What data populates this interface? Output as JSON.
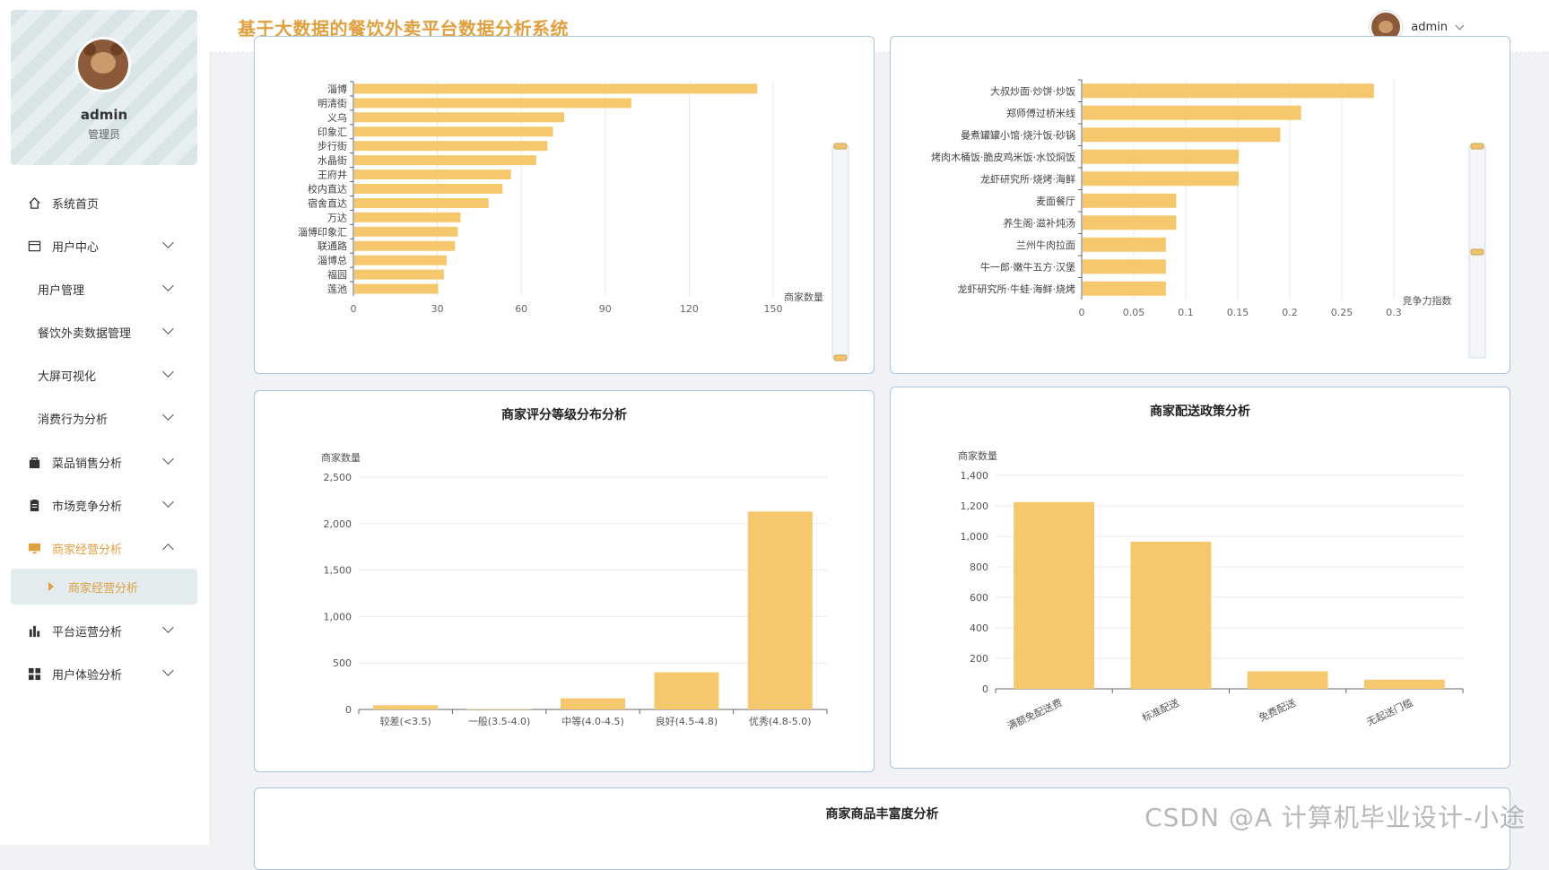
{
  "app": {
    "title": "基于大数据的餐饮外卖平台数据分析系统"
  },
  "profile": {
    "name": "admin",
    "role": "管理员"
  },
  "header_user": {
    "name": "admin"
  },
  "menu": [
    {
      "label": "系统首页",
      "icon": "home-icon",
      "type": "top",
      "chevron": "none"
    },
    {
      "label": "用户中心",
      "icon": "user-card-icon",
      "type": "top",
      "chevron": "down"
    },
    {
      "label": "用户管理",
      "icon": "",
      "type": "sub",
      "chevron": "down"
    },
    {
      "label": "餐饮外卖数据管理",
      "icon": "",
      "type": "sub",
      "chevron": "down"
    },
    {
      "label": "大屏可视化",
      "icon": "",
      "type": "sub",
      "chevron": "down"
    },
    {
      "label": "消费行为分析",
      "icon": "",
      "type": "sub",
      "chevron": "down"
    },
    {
      "label": "菜品销售分析",
      "icon": "bag-icon",
      "type": "top",
      "chevron": "down"
    },
    {
      "label": "市场竞争分析",
      "icon": "clipboard-icon",
      "type": "top",
      "chevron": "down"
    },
    {
      "label": "商家经营分析",
      "icon": "monitor-icon",
      "type": "top",
      "chevron": "up",
      "active": true
    },
    {
      "label": "商家经营分析",
      "icon": "",
      "type": "child",
      "chevron": "none",
      "active": true
    },
    {
      "label": "平台运营分析",
      "icon": "bar-chart-icon",
      "type": "top",
      "chevron": "down"
    },
    {
      "label": "用户体验分析",
      "icon": "grid-icon",
      "type": "top",
      "chevron": "down"
    }
  ],
  "colors": {
    "accent": "#e0a040",
    "bar": "#f5c86e",
    "card_border": "#aac3e0"
  },
  "chart_data": [
    {
      "type": "bar",
      "orientation": "horizontal",
      "title": "",
      "categories": [
        "淄博",
        "明清街",
        "义乌",
        "印象汇",
        "步行街",
        "水晶街",
        "王府井",
        "校内直达",
        "宿舍直达",
        "万达",
        "淄博印象汇",
        "联通路",
        "淄博总",
        "福园",
        "莲池"
      ],
      "values": [
        144,
        99,
        75,
        71,
        69,
        65,
        56,
        53,
        48,
        38,
        37,
        36,
        33,
        32,
        30
      ],
      "xlabel": "商家数量",
      "xlim": [
        0,
        150
      ],
      "xticks": [
        0,
        30,
        60,
        90,
        120,
        150
      ]
    },
    {
      "type": "bar",
      "orientation": "horizontal",
      "title": "",
      "categories": [
        "大叔炒面·炒饼·炒饭",
        "郑师傅过桥米线",
        "曼煮罐罐小馆·烧汁饭·砂锅",
        "烤肉木桶饭·脆皮鸡米饭·水饺焖饭",
        "龙虾研究所·烧烤·海鲜",
        "麦面餐厅",
        "养生阁·滋补炖汤",
        "兰州牛肉拉面",
        "牛一郎·嫩牛五方·汉堡",
        "龙虾研究所·牛蛙·海鲜·烧烤"
      ],
      "values": [
        0.28,
        0.21,
        0.19,
        0.15,
        0.15,
        0.09,
        0.09,
        0.08,
        0.08,
        0.08
      ],
      "xlabel": "竞争力指数",
      "xlim": [
        0,
        0.3
      ],
      "xticks": [
        "0",
        "0.05",
        "0.1",
        "0.15",
        "0.2",
        "0.25",
        "0.3"
      ]
    },
    {
      "type": "bar",
      "title": "商家评分等级分布分析",
      "categories": [
        "较差(<3.5)",
        "一般(3.5-4.0)",
        "中等(4.0-4.5)",
        "良好(4.5-4.8)",
        "优秀(4.8-5.0)"
      ],
      "values": [
        45,
        5,
        120,
        400,
        2130
      ],
      "ylabel": "商家数量",
      "ylim": [
        0,
        2500
      ],
      "yticks": [
        "0",
        "500",
        "1,000",
        "1,500",
        "2,000",
        "2,500"
      ]
    },
    {
      "type": "bar",
      "title": "商家配送政策分析",
      "categories": [
        "满额免配送费",
        "标准配送",
        "免费配送",
        "无起送门槛"
      ],
      "values": [
        1225,
        965,
        115,
        60
      ],
      "ylabel": "商家数量",
      "ylim": [
        0,
        1400
      ],
      "yticks": [
        "0",
        "200",
        "400",
        "600",
        "800",
        "1,000",
        "1,200",
        "1,400"
      ]
    },
    {
      "type": "bar",
      "title": "商家商品丰富度分析",
      "categories": [],
      "values": []
    }
  ],
  "watermark": "CSDN @A 计算机毕业设计-小途"
}
